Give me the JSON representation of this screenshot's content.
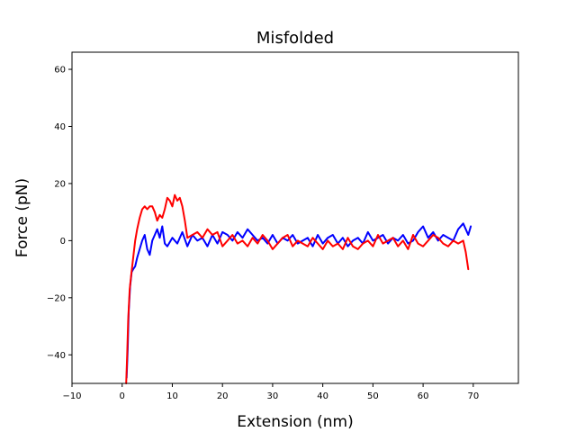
{
  "chart_data": {
    "type": "line",
    "title": "Misfolded",
    "xlabel": "Extension (nm)",
    "ylabel": "Force (pN)",
    "xlim": [
      -10,
      79
    ],
    "ylim": [
      -50,
      66
    ],
    "xticks": [
      -10,
      0,
      10,
      20,
      30,
      40,
      50,
      60,
      70
    ],
    "yticks": [
      -40,
      -20,
      0,
      20,
      40,
      60
    ],
    "grid": false,
    "legend": "none",
    "series": [
      {
        "color": "#0000ff",
        "x": [
          0.9,
          1.1,
          1.3,
          1.6,
          1.9,
          2.2,
          2.6,
          3.0,
          3.5,
          4.0,
          4.5,
          5.0,
          5.5,
          6.0,
          6.5,
          7.0,
          7.5,
          8.0,
          8.5,
          9.0,
          10.0,
          11.0,
          12.0,
          13.0,
          14.0,
          15.0,
          16.0,
          17.0,
          18.0,
          19.0,
          20.0,
          21.0,
          22.0,
          23.0,
          24.0,
          25.0,
          26.0,
          27.0,
          28.0,
          29.0,
          30.0,
          31.0,
          32.0,
          33.0,
          34.0,
          35.0,
          36.0,
          37.0,
          38.0,
          39.0,
          40.0,
          41.0,
          42.0,
          43.0,
          44.0,
          45.0,
          46.0,
          47.0,
          48.0,
          49.0,
          50.0,
          51.0,
          52.0,
          53.0,
          54.0,
          55.0,
          56.0,
          57.0,
          58.0,
          59.0,
          60.0,
          61.0,
          62.0,
          63.0,
          64.0,
          65.0,
          66.0,
          67.0,
          68.0,
          69.0,
          69.5
        ],
        "y": [
          -48,
          -38,
          -25,
          -16,
          -11,
          -10,
          -9,
          -6,
          -3,
          0,
          2,
          -3,
          -5,
          0,
          2,
          4,
          1,
          5,
          -1,
          -2,
          1,
          -1,
          3,
          -2,
          2,
          0,
          1,
          -2,
          2,
          -1,
          3,
          2,
          0,
          3,
          1,
          4,
          2,
          0,
          1,
          -1,
          2,
          -1,
          1,
          0,
          2,
          -1,
          0,
          1,
          -2,
          2,
          -1,
          1,
          2,
          -1,
          1,
          -2,
          0,
          1,
          -1,
          3,
          0,
          1,
          2,
          -1,
          1,
          0,
          2,
          -1,
          0,
          3,
          5,
          1,
          3,
          0,
          2,
          1,
          0,
          4,
          6,
          2,
          5
        ]
      },
      {
        "color": "#ff0000",
        "x": [
          0.8,
          1.0,
          1.2,
          1.5,
          1.8,
          2.2,
          2.6,
          3.0,
          3.5,
          4.0,
          4.5,
          5.0,
          5.5,
          6.0,
          6.5,
          7.0,
          7.5,
          8.0,
          8.5,
          9.0,
          9.5,
          10.0,
          10.5,
          11.0,
          11.5,
          12.0,
          12.5,
          13.0,
          14.0,
          15.0,
          16.0,
          17.0,
          18.0,
          19.0,
          20.0,
          21.0,
          22.0,
          23.0,
          24.0,
          25.0,
          26.0,
          27.0,
          28.0,
          29.0,
          30.0,
          31.0,
          32.0,
          33.0,
          34.0,
          35.0,
          36.0,
          37.0,
          38.0,
          39.0,
          40.0,
          41.0,
          42.0,
          43.0,
          44.0,
          45.0,
          46.0,
          47.0,
          48.0,
          49.0,
          50.0,
          51.0,
          52.0,
          53.0,
          54.0,
          55.0,
          56.0,
          57.0,
          58.0,
          59.0,
          60.0,
          61.0,
          62.0,
          63.0,
          64.0,
          65.0,
          66.0,
          67.0,
          68.0,
          68.5,
          69.0
        ],
        "y": [
          -50,
          -40,
          -28,
          -17,
          -12,
          -6,
          0,
          4,
          8,
          11,
          12,
          11,
          12,
          12,
          10,
          7,
          9,
          8,
          11,
          15,
          14,
          12,
          16,
          14,
          15,
          12,
          7,
          1,
          2,
          3,
          1,
          4,
          2,
          3,
          -2,
          0,
          2,
          -1,
          0,
          -2,
          1,
          -1,
          2,
          0,
          -3,
          -1,
          1,
          2,
          -2,
          0,
          -1,
          -2,
          1,
          -1,
          -3,
          0,
          -2,
          -1,
          -3,
          1,
          -2,
          -3,
          -1,
          0,
          -2,
          2,
          -1,
          0,
          1,
          -2,
          0,
          -3,
          2,
          -1,
          -2,
          0,
          2,
          1,
          -1,
          -2,
          0,
          -1,
          0,
          -4,
          -10
        ]
      }
    ]
  }
}
